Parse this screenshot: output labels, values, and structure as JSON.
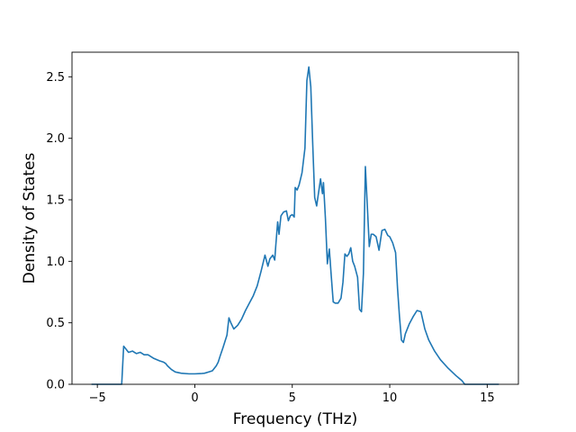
{
  "chart_data": {
    "type": "line",
    "title": "",
    "xlabel": "Frequency (THz)",
    "ylabel": "Density of States",
    "xlim": [
      -6.3,
      16.6
    ],
    "ylim": [
      0.0,
      2.7
    ],
    "xticks": [
      -5,
      0,
      5,
      10,
      15
    ],
    "yticks": [
      0.0,
      0.5,
      1.0,
      1.5,
      2.0,
      2.5
    ],
    "xtick_labels": [
      "−5",
      "0",
      "5",
      "10",
      "15"
    ],
    "ytick_labels": [
      "0.0",
      "0.5",
      "1.0",
      "1.5",
      "2.0",
      "2.5"
    ],
    "grid": false,
    "legend": "none",
    "colors": {
      "series": "#1f77b4"
    },
    "series": [
      {
        "x": [
          -5.3,
          -4.5,
          -3.75,
          -3.65,
          -3.5,
          -3.4,
          -3.2,
          -3.0,
          -2.8,
          -2.6,
          -2.4,
          -2.3,
          -2.1,
          -1.8,
          -1.6,
          -1.5,
          -1.4,
          -1.2,
          -1.0,
          -0.7,
          -0.3,
          0.0,
          0.3,
          0.5,
          0.7,
          0.9,
          1.0,
          1.1,
          1.2,
          1.3,
          1.45,
          1.55,
          1.65,
          1.75,
          1.85,
          2.0,
          2.2,
          2.4,
          2.6,
          2.8,
          3.0,
          3.2,
          3.4,
          3.6,
          3.75,
          3.85,
          4.0,
          4.1,
          4.15,
          4.25,
          4.32,
          4.42,
          4.55,
          4.7,
          4.8,
          4.9,
          5.0,
          5.1,
          5.15,
          5.25,
          5.35,
          5.5,
          5.65,
          5.75,
          5.85,
          5.95,
          6.05,
          6.15,
          6.25,
          6.35,
          6.45,
          6.55,
          6.6,
          6.7,
          6.8,
          6.9,
          7.0,
          7.1,
          7.2,
          7.35,
          7.5,
          7.6,
          7.7,
          7.8,
          7.9,
          8.0,
          8.1,
          8.2,
          8.35,
          8.45,
          8.55,
          8.65,
          8.75,
          8.85,
          8.95,
          9.05,
          9.15,
          9.3,
          9.45,
          9.6,
          9.75,
          9.9,
          10.0,
          10.15,
          10.3,
          10.4,
          10.5,
          10.6,
          10.7,
          10.8,
          11.0,
          11.2,
          11.4,
          11.6,
          11.7,
          11.8,
          12.0,
          12.3,
          12.6,
          13.0,
          13.4,
          13.7,
          13.85,
          14.0,
          15.0,
          15.6
        ],
        "y": [
          0.0,
          0.0,
          0.0,
          0.31,
          0.28,
          0.26,
          0.27,
          0.25,
          0.26,
          0.24,
          0.24,
          0.23,
          0.21,
          0.19,
          0.18,
          0.17,
          0.15,
          0.12,
          0.1,
          0.09,
          0.085,
          0.085,
          0.087,
          0.09,
          0.1,
          0.11,
          0.13,
          0.15,
          0.18,
          0.23,
          0.3,
          0.35,
          0.4,
          0.54,
          0.5,
          0.45,
          0.48,
          0.53,
          0.6,
          0.66,
          0.72,
          0.8,
          0.92,
          1.05,
          0.96,
          1.02,
          1.05,
          1.01,
          1.12,
          1.32,
          1.22,
          1.37,
          1.4,
          1.41,
          1.33,
          1.37,
          1.38,
          1.36,
          1.6,
          1.58,
          1.62,
          1.72,
          1.92,
          2.47,
          2.58,
          2.42,
          1.95,
          1.52,
          1.45,
          1.56,
          1.67,
          1.55,
          1.64,
          1.35,
          0.98,
          1.1,
          0.88,
          0.67,
          0.66,
          0.66,
          0.7,
          0.83,
          1.06,
          1.04,
          1.06,
          1.11,
          1.0,
          0.96,
          0.87,
          0.61,
          0.59,
          0.9,
          1.77,
          1.45,
          1.12,
          1.22,
          1.22,
          1.2,
          1.09,
          1.25,
          1.26,
          1.21,
          1.2,
          1.15,
          1.07,
          0.78,
          0.55,
          0.36,
          0.34,
          0.41,
          0.49,
          0.55,
          0.6,
          0.59,
          0.52,
          0.45,
          0.36,
          0.27,
          0.2,
          0.13,
          0.07,
          0.03,
          0.0,
          0.0,
          0.0,
          0.0
        ]
      }
    ]
  }
}
